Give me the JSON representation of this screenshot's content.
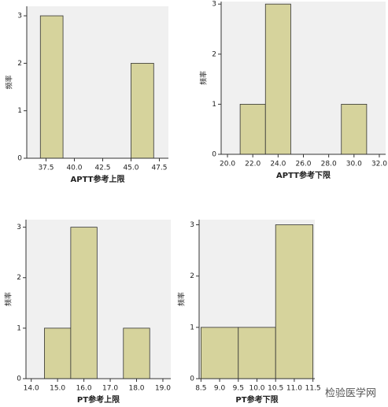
{
  "chart_data": [
    {
      "type": "histogram",
      "xlabel": "APTT参考上限",
      "ylabel": "频率",
      "bins": [
        37,
        39,
        41,
        43,
        45,
        47
      ],
      "values": [
        3,
        0,
        0,
        0,
        2
      ],
      "color": "#d6d39c",
      "xlim": [
        35.8,
        48.3
      ],
      "xticks": [
        37.5,
        {
          "value": 40,
          "label": "40.0"
        },
        42.5,
        {
          "value": 45,
          "label": "45.0"
        },
        47.5
      ],
      "ylim": [
        0,
        3.2
      ],
      "yticks": [
        0,
        1,
        2,
        3
      ]
    },
    {
      "type": "histogram",
      "xlabel": "APTT参考下限",
      "ylabel": "频率",
      "bins": [
        21,
        23,
        25,
        27,
        29,
        31
      ],
      "values": [
        1,
        3,
        0,
        0,
        1
      ],
      "color": "#d6d39c",
      "xlim": [
        19.5,
        32.5
      ],
      "xticks": [
        {
          "value": 20,
          "label": "20.0"
        },
        {
          "value": 22,
          "label": "22.0"
        },
        {
          "value": 24,
          "label": "24.0"
        },
        {
          "value": 26,
          "label": "26.0"
        },
        {
          "value": 28,
          "label": "28.0"
        },
        {
          "value": 30,
          "label": "30.0"
        },
        {
          "value": 32,
          "label": "32.0"
        }
      ],
      "ylim": [
        0,
        3.05
      ],
      "yticks": [
        0,
        1,
        2,
        3
      ]
    },
    {
      "type": "histogram",
      "xlabel": "PT参考上限",
      "ylabel": "频率",
      "bins": [
        14.5,
        15.5,
        16.5,
        17.5,
        18.5
      ],
      "values": [
        1,
        3,
        0,
        1
      ],
      "color": "#d6d39c",
      "xlim": [
        13.8,
        19.3
      ],
      "xticks": [
        {
          "value": 14,
          "label": "14.0"
        },
        {
          "value": 15,
          "label": "15.0"
        },
        {
          "value": 16,
          "label": "16.0"
        },
        {
          "value": 17,
          "label": "17.0"
        },
        {
          "value": 18,
          "label": "18.0"
        },
        {
          "value": 19,
          "label": "19.0"
        }
      ],
      "ylim": [
        0,
        3.15
      ],
      "yticks": [
        0,
        1,
        2,
        3
      ]
    },
    {
      "type": "histogram",
      "xlabel": "PT参考下限",
      "ylabel": "频率",
      "bins": [
        8.5,
        9.5,
        10.5,
        11.5
      ],
      "values": [
        1,
        1,
        3
      ],
      "color": "#d6d39c",
      "xlim": [
        8.45,
        11.55
      ],
      "xticks": [
        8.5,
        {
          "value": 9,
          "label": "9.0"
        },
        9.5,
        {
          "value": 10,
          "label": "10.0"
        },
        10.5,
        {
          "value": 11,
          "label": "11.0"
        },
        11.5
      ],
      "ylim": [
        0,
        3.1
      ],
      "yticks": [
        0,
        1,
        2,
        3
      ]
    }
  ],
  "watermark": "检验医学网"
}
